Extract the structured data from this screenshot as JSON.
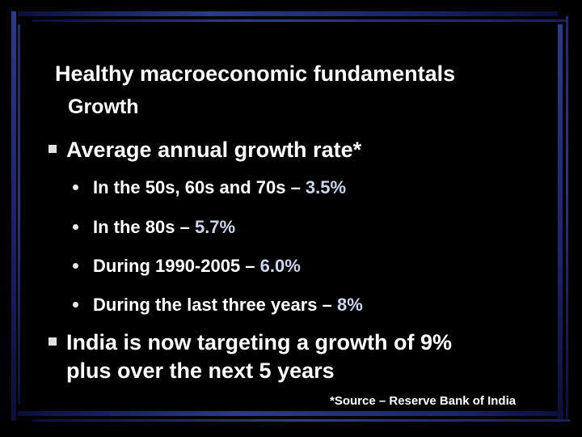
{
  "slide": {
    "title": "Healthy macroeconomic fundamentals",
    "subtitle": "Growth",
    "bullets": [
      {
        "text": "Average annual growth rate*",
        "sub_bullets": [
          {
            "label": "In the 50s, 60s and 70s – ",
            "value": "3.5%"
          },
          {
            "label": "In the 80s – ",
            "value": "5.7%"
          },
          {
            "label": "During 1990-2005 – ",
            "value": "6.0%"
          },
          {
            "label": "During the last three years – ",
            "value": "8%"
          }
        ]
      },
      {
        "line1": "India is now targeting a growth of 9%",
        "line2": "plus over the next 5 years"
      }
    ],
    "footnote": "*Source – Reserve Bank of India"
  },
  "icons": {
    "bullet_level1": "square-bullet-icon",
    "bullet_level2": "round-bullet-icon"
  },
  "colors": {
    "background": "#000000",
    "text": "#ffffff",
    "value_text": "#c9d6ee",
    "frame": "#2a3a8c"
  }
}
